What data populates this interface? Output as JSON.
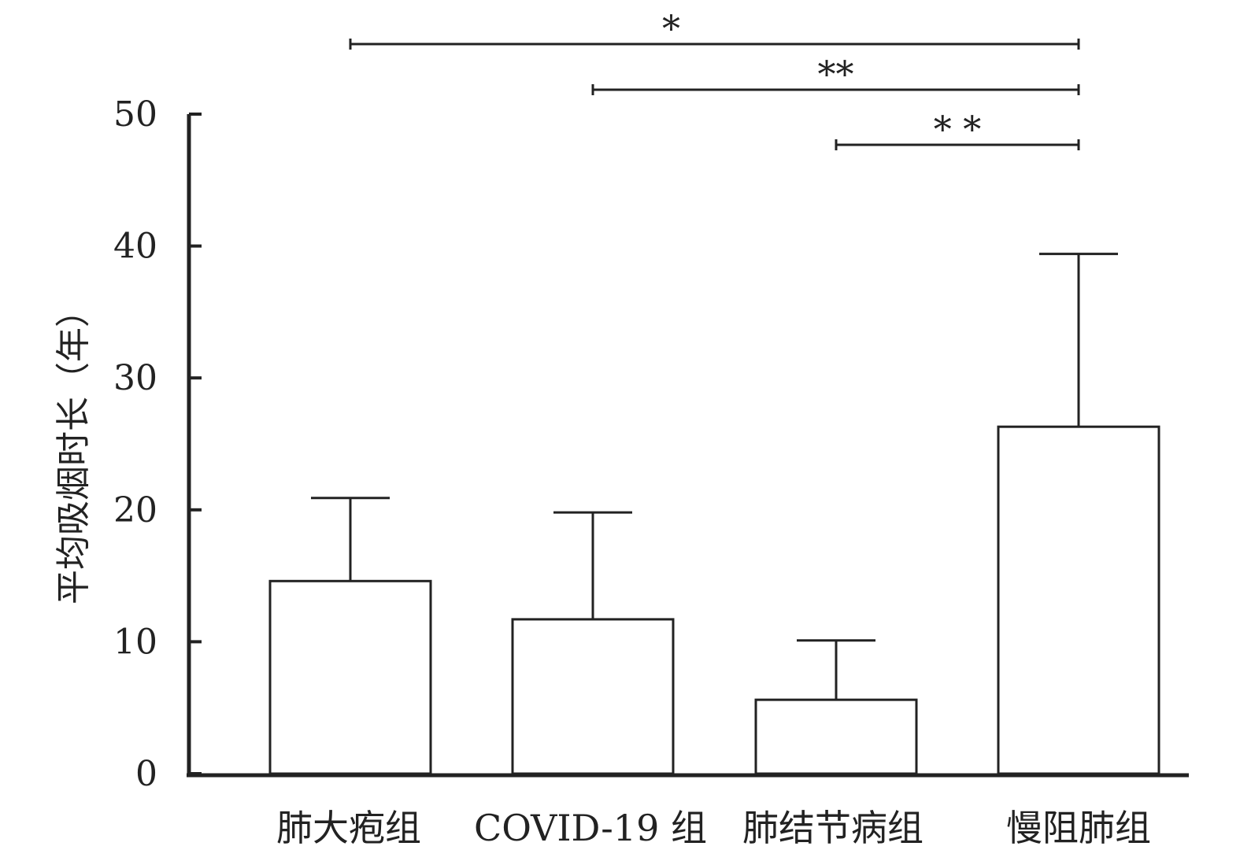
{
  "chart_data": {
    "type": "bar",
    "title": "",
    "xlabel": "",
    "ylabel": "平均吸烟时长（年）",
    "ylim": [
      0,
      50
    ],
    "yticks": [
      0,
      10,
      20,
      30,
      40,
      50
    ],
    "grid": false,
    "legend": "none",
    "categories": [
      "肺大疱组",
      "COVID-19 组",
      "肺结节病组",
      "慢阻肺组"
    ],
    "series": [
      {
        "values": [
          14.6,
          11.7,
          5.6,
          26.3
        ],
        "error_upper": [
          6.3,
          8.1,
          4.5,
          13.1
        ]
      }
    ],
    "significance": [
      {
        "from": 0,
        "to": 3,
        "label": "*"
      },
      {
        "from": 1,
        "to": 3,
        "label": "**"
      },
      {
        "from": 2,
        "to": 3,
        "label": "* *"
      }
    ],
    "colors": {
      "bar_fill": "#ffffff",
      "stroke": "#222222"
    }
  }
}
